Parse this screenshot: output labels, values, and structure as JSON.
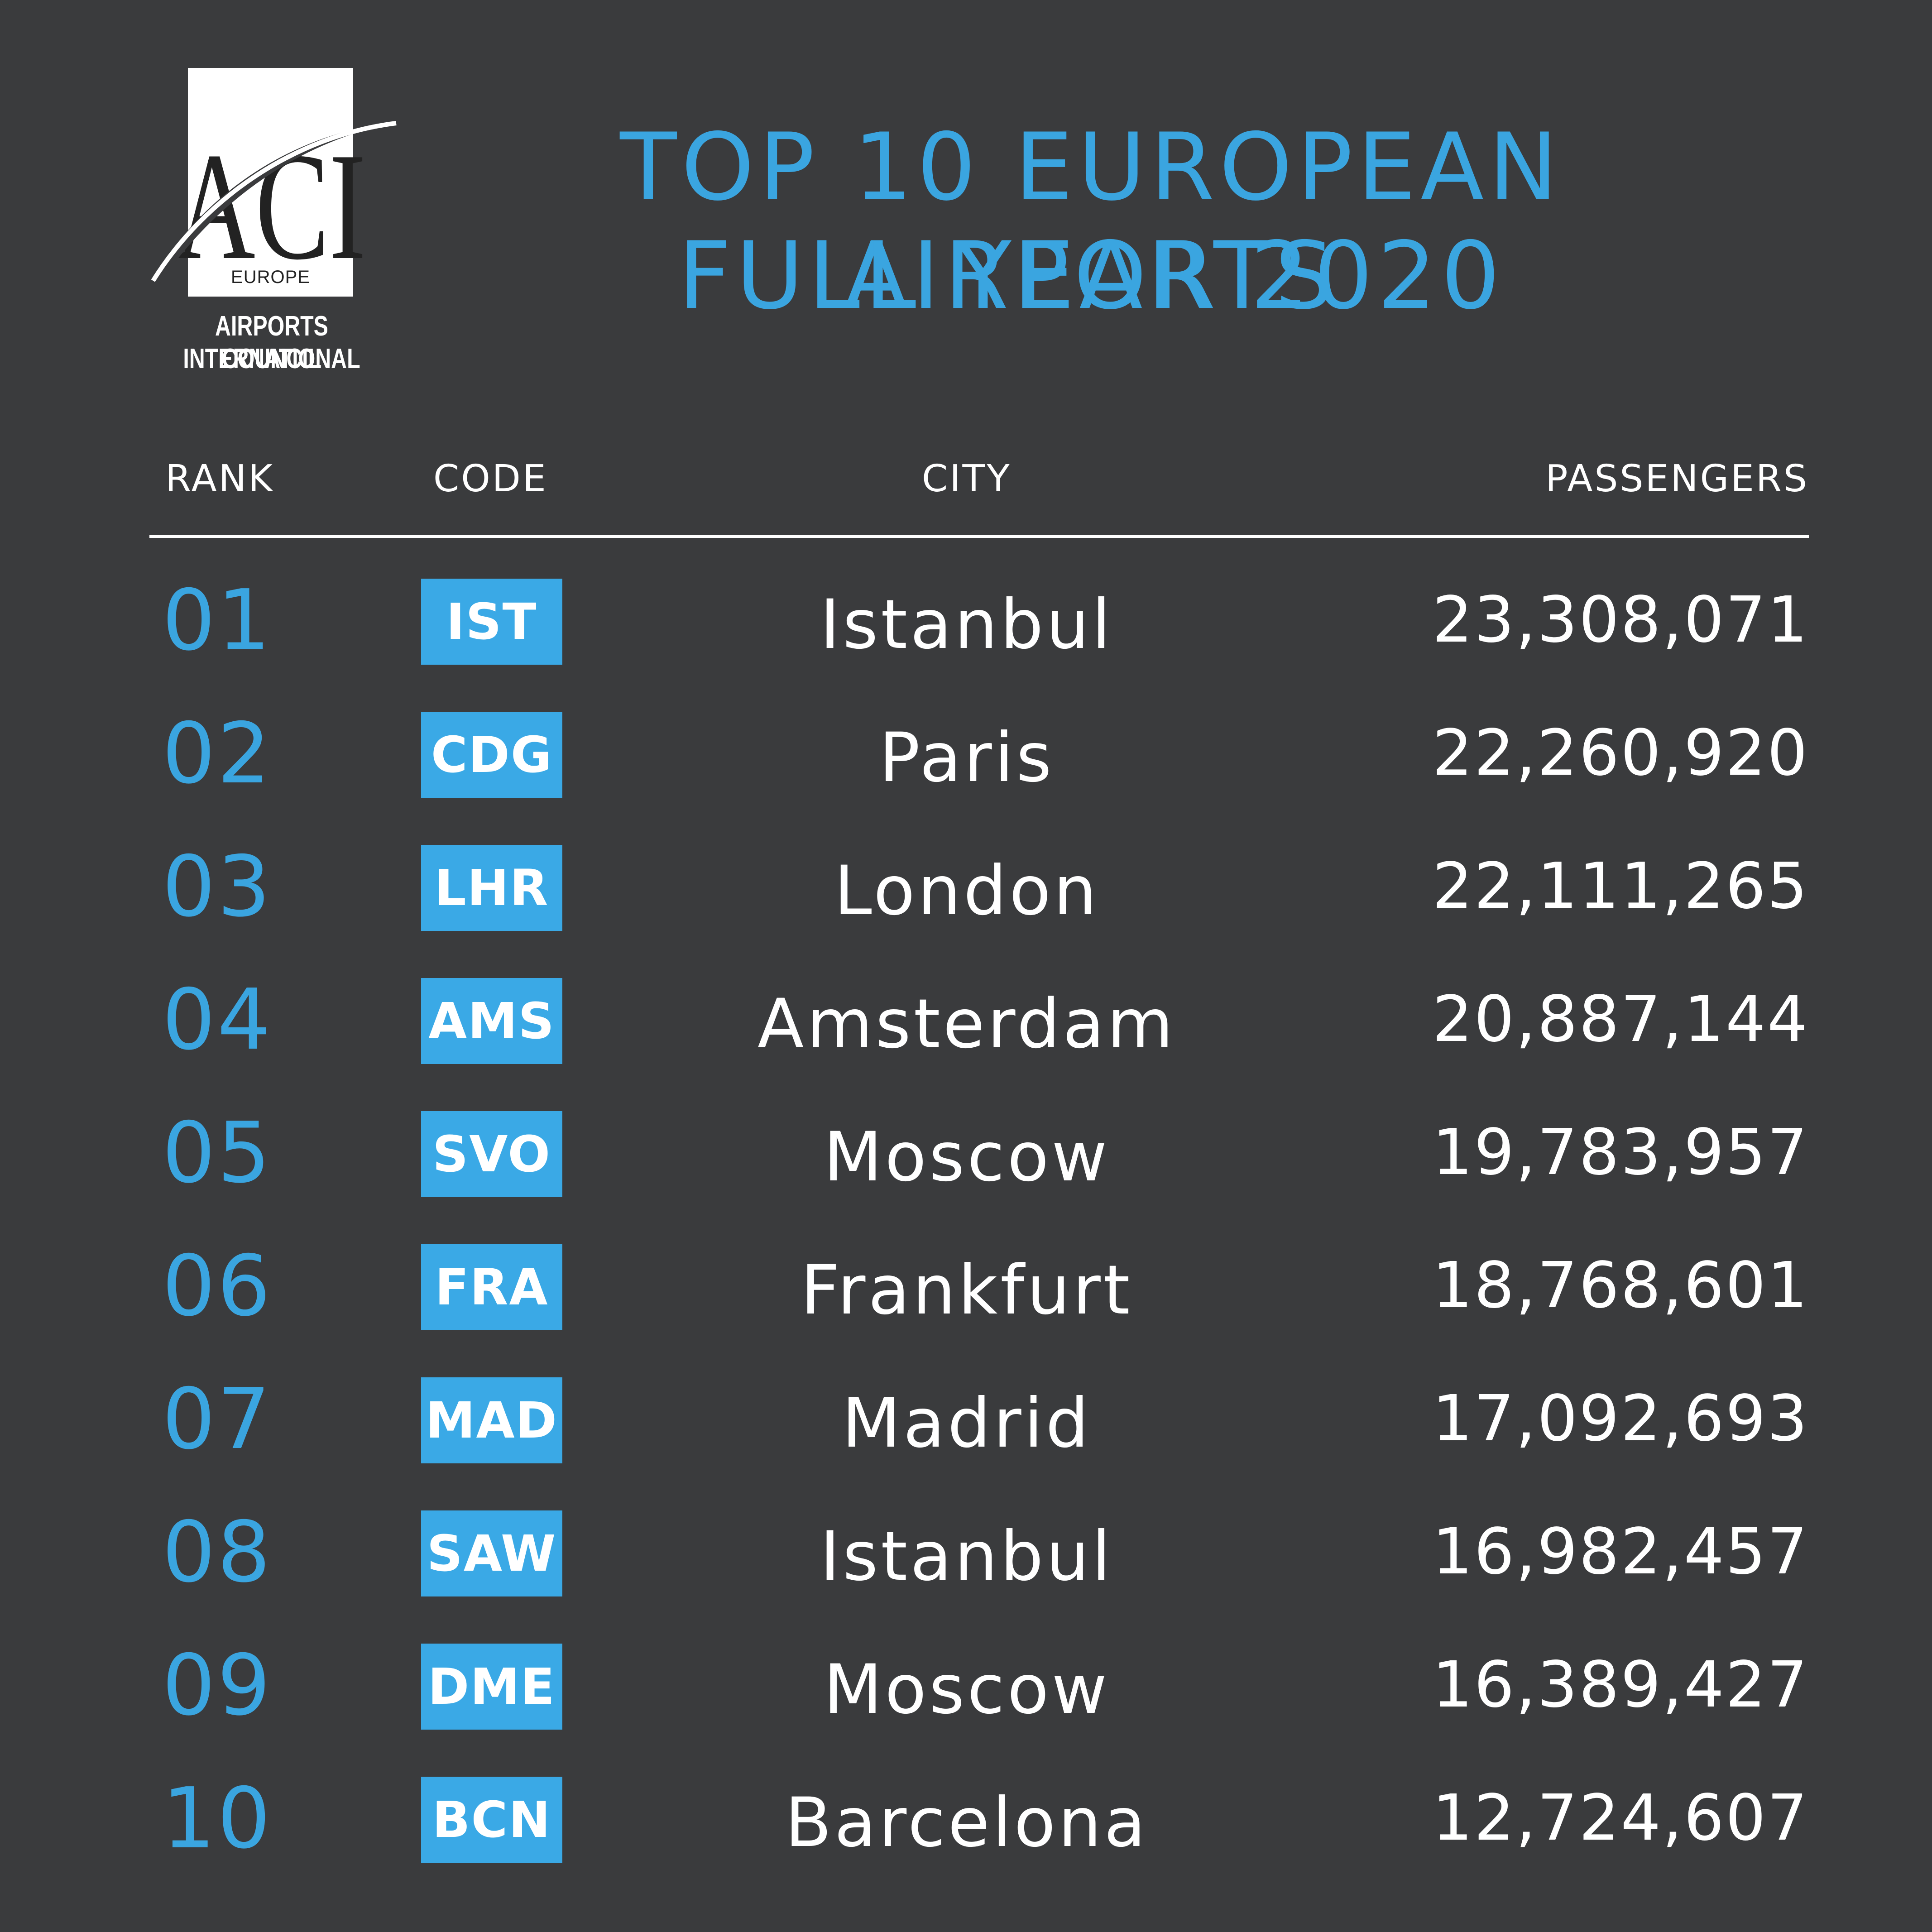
{
  "logo": {
    "mark": "ACI",
    "region": "EUROPE",
    "caption_line1": "AIRPORTS COUNCIL",
    "caption_line2": "INTERNATIONAL"
  },
  "title": {
    "line1": "TOP 10 EUROPEAN AIRPORTS",
    "line2": "FULL YEAR 2020"
  },
  "colors": {
    "background": "#3a3b3d",
    "accent": "#3aa5e0",
    "text": "#ffffff"
  },
  "table": {
    "headers": {
      "rank": "RANK",
      "code": "CODE",
      "city": "CITY",
      "passengers": "PASSENGERS"
    },
    "rows": [
      {
        "rank": "01",
        "code": "IST",
        "city": "Istanbul",
        "passengers": "23,308,071"
      },
      {
        "rank": "02",
        "code": "CDG",
        "city": "Paris",
        "passengers": "22,260,920"
      },
      {
        "rank": "03",
        "code": "LHR",
        "city": "London",
        "passengers": "22,111,265"
      },
      {
        "rank": "04",
        "code": "AMS",
        "city": "Amsterdam",
        "passengers": "20,887,144"
      },
      {
        "rank": "05",
        "code": "SVO",
        "city": "Moscow",
        "passengers": "19,783,957"
      },
      {
        "rank": "06",
        "code": "FRA",
        "city": "Frankfurt",
        "passengers": "18,768,601"
      },
      {
        "rank": "07",
        "code": "MAD",
        "city": "Madrid",
        "passengers": "17,092,693"
      },
      {
        "rank": "08",
        "code": "SAW",
        "city": "Istanbul",
        "passengers": "16,982,457"
      },
      {
        "rank": "09",
        "code": "DME",
        "city": "Moscow",
        "passengers": "16,389,427"
      },
      {
        "rank": "10",
        "code": "BCN",
        "city": "Barcelona",
        "passengers": "12,724,607"
      }
    ]
  }
}
